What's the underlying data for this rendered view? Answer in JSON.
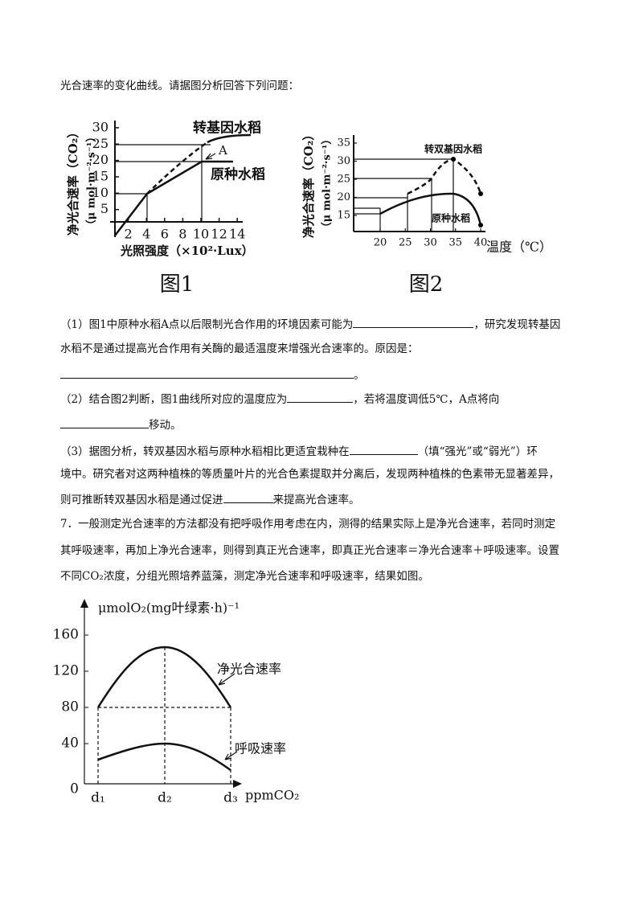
{
  "intro": "光合速率的变化曲线。请据图分析回答下列问题：",
  "figure1": {
    "caption": "图1",
    "y_label": "净光合速率（CO₂）",
    "y_unit": "（μ mol·m⁻²·s⁻¹）",
    "x_label": "光照强度（×10²·Lux）",
    "yticks": [
      30,
      25,
      20,
      15,
      10,
      5
    ],
    "xticks": [
      2,
      4,
      6,
      8,
      10,
      12,
      14
    ],
    "curve_labels": [
      "转基因水稻",
      "A",
      "原种水稻"
    ]
  },
  "figure2": {
    "caption": "图2",
    "y_label": "净光合速率（CO₂）",
    "y_unit": "（μ mol·m⁻²·s⁻¹）",
    "x_label": "温度（℃）",
    "yticks": [
      35,
      30,
      25,
      20,
      15
    ],
    "xticks": [
      20,
      25,
      30,
      35,
      40
    ],
    "curve_labels": [
      "转双基因水稻",
      "原种水稻"
    ]
  },
  "questions": [
    {
      "lines": [
        [
          "（1）图1中原种水稻A点以后限制光合作用的环境因素可能为",
          "，研究发现转基因"
        ],
        [
          "水稻不是通过提高光合作用有关酶的最适温度来增强光合速率的。原因是："
        ],
        [
          "。"
        ]
      ]
    },
    {
      "lines": [
        [
          "（2）结合图2判断，图1曲线所对应的温度应为",
          "，若将温度调低5℃，A点将向"
        ],
        [
          "移动。"
        ]
      ]
    },
    {
      "lines": [
        [
          "（3）据图分析，转双基因水稻与原种水稻相比更适宜栽种在",
          "（填“强光”或“弱光”）环"
        ],
        [
          "境中。研究者对这两种植株的等质量叶片的光合色素提取并分离后，发现两种植株的色素带无显著差异，"
        ],
        [
          "则可推断转双基因水稻是通过促进",
          "来提高光合速率。"
        ]
      ]
    },
    {
      "lines": [
        [
          "7．一般测定光合速率的方法都没有把呼吸作用考虑在内，测得的结果实际上是净光合速率，若同时测定"
        ],
        [
          "其呼吸速率，再加上净光合速率，则得到真正光合速率，即真正光合速率＝净光合速率＋呼吸速率。设置"
        ],
        [
          "不同CO₂浓度，分组光照培养蓝藻，测定净光合速率和呼吸速率，结果如图。"
        ]
      ]
    }
  ],
  "figure3": {
    "y_label": "μmolO₂(mg叶绿素·h)⁻¹",
    "x_label": "ppmCO₂",
    "yticks": [
      160,
      120,
      80,
      40,
      0
    ],
    "xticks": [
      "d₁",
      "d₂",
      "d₃"
    ],
    "curve_labels": [
      "净光合速率",
      "呼吸速率"
    ]
  }
}
